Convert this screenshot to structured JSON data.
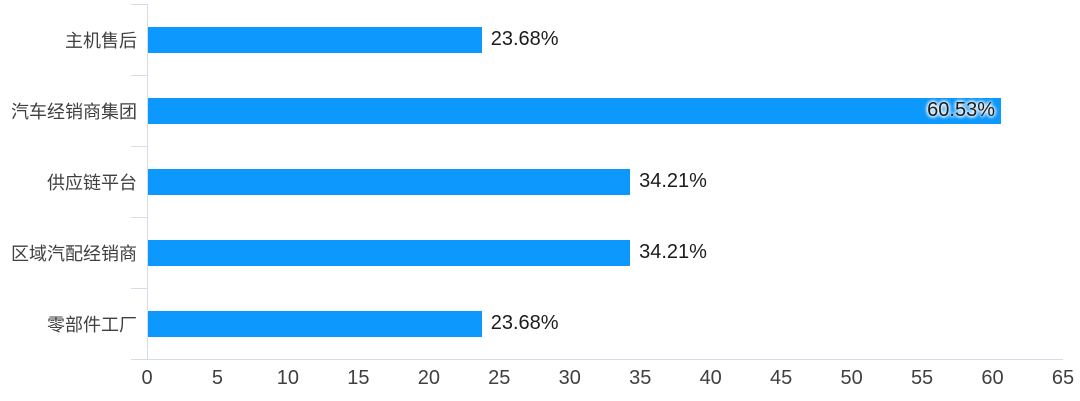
{
  "chart": {
    "background_color": "#ffffff",
    "bar_color": "#0C98FC",
    "axis_line_color": "#D5DDE9",
    "category_label_color": "#404040",
    "value_label_color": "#1C1C1C",
    "tick_label_color": "#404040"
  },
  "chart_data": {
    "type": "bar",
    "orientation": "horizontal",
    "title": "",
    "xlabel": "",
    "ylabel": "",
    "categories": [
      "主机售后",
      "汽车经销商集团",
      "供应链平台",
      "区域汽配经销商",
      "零部件工厂"
    ],
    "values": [
      23.68,
      60.53,
      34.21,
      34.21,
      23.68
    ],
    "data_labels": [
      "23.68%",
      "60.53%",
      "34.21%",
      "34.21%",
      "23.68%"
    ],
    "label_positions": [
      "outside",
      "inside",
      "outside",
      "outside",
      "outside"
    ],
    "xlim": [
      0,
      65
    ],
    "x_ticks": [
      0,
      5,
      10,
      15,
      20,
      25,
      30,
      35,
      40,
      45,
      50,
      55,
      60,
      65
    ],
    "grid": false,
    "legend": false
  }
}
